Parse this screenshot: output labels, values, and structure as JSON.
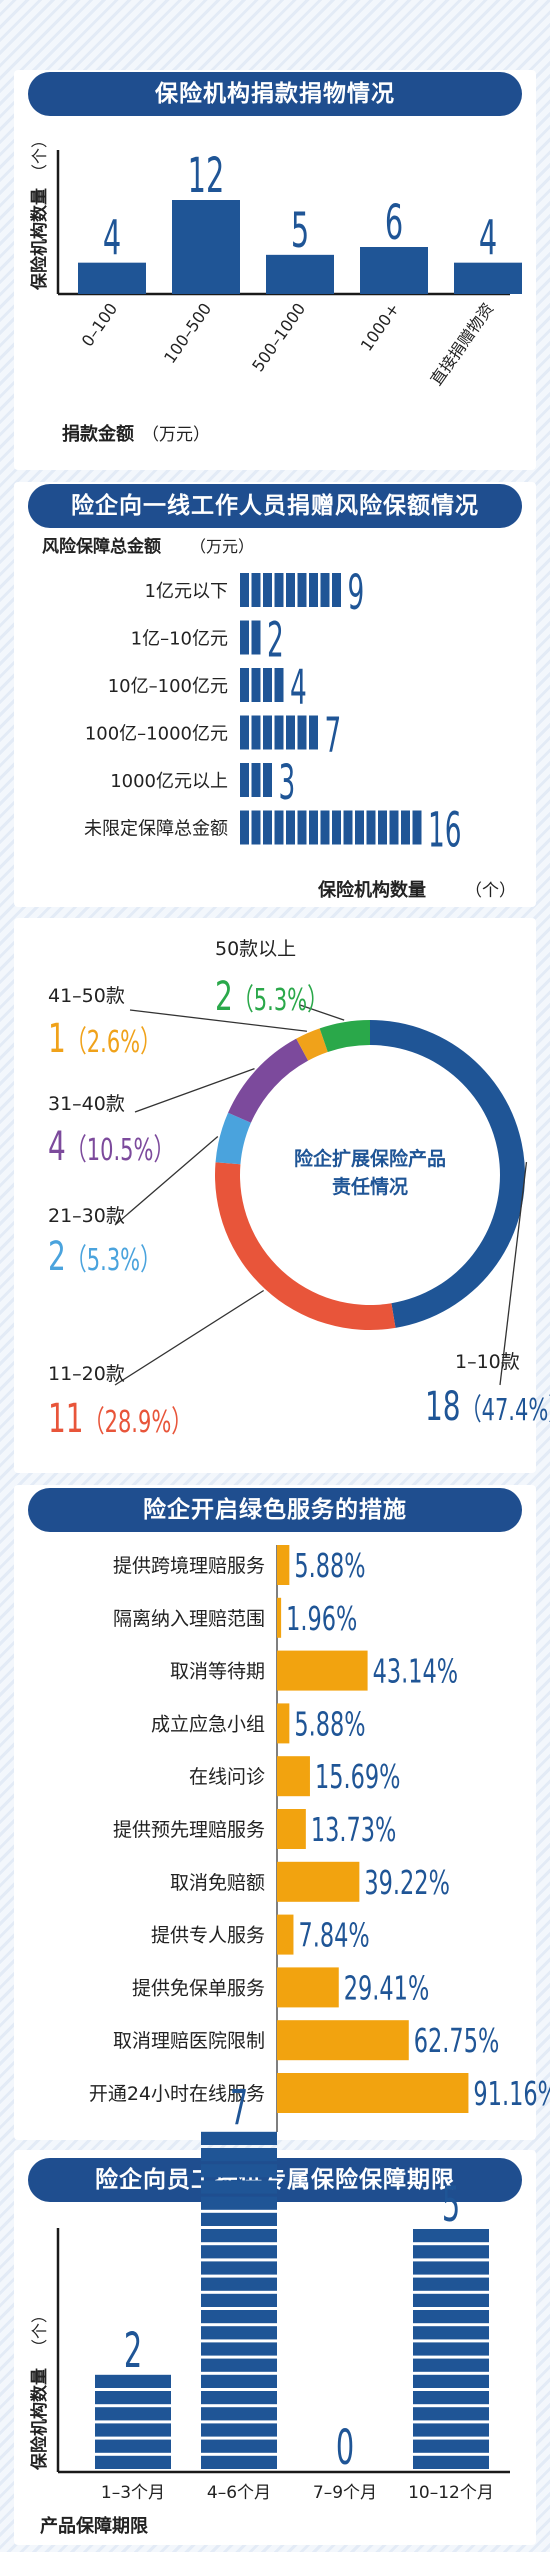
{
  "chart_data": [
    {
      "type": "bar",
      "title": "保险机构捐款捐物情况",
      "xlabel": "捐款金额",
      "xlabel_unit": "（万元）",
      "ylabel": "保险机构数量",
      "ylabel_unit": "（个）",
      "categories": [
        "0–100",
        "100–500",
        "500–1000",
        "1000+",
        "直接捐赠物资"
      ],
      "values": [
        4,
        12,
        5,
        6,
        4
      ],
      "ylim": [
        0,
        12
      ]
    },
    {
      "type": "bar",
      "orientation": "horizontal",
      "title": "险企向一线工作人员捐赠风险保额情况",
      "ylabel": "风险保障总金额",
      "ylabel_unit": "（万元）",
      "xlabel": "保险机构数量",
      "xlabel_unit": "（个）",
      "categories": [
        "1亿元以下",
        "1亿–10亿元",
        "10亿–100亿元",
        "100亿–1000亿元",
        "1000亿元以上",
        "未限定保障总金额"
      ],
      "values": [
        9,
        2,
        4,
        7,
        3,
        16
      ]
    },
    {
      "type": "pie",
      "title": "险企扩展保险产品责任情况",
      "slices": [
        {
          "label": "1–10款",
          "value": 18,
          "percent": "47.4%",
          "color": "#1f5596"
        },
        {
          "label": "11–20款",
          "value": 11,
          "percent": "28.9%",
          "color": "#e8553a"
        },
        {
          "label": "21–30款",
          "value": 2,
          "percent": "5.3%",
          "color": "#4aa3dd"
        },
        {
          "label": "31–40款",
          "value": 4,
          "percent": "10.5%",
          "color": "#7c4a9c"
        },
        {
          "label": "41–50款",
          "value": 1,
          "percent": "2.6%",
          "color": "#f0a21a"
        },
        {
          "label": "50款以上",
          "value": 2,
          "percent": "5.3%",
          "color": "#2aa84a"
        }
      ]
    },
    {
      "type": "bar",
      "orientation": "horizontal",
      "title": "险企开启绿色服务的措施",
      "categories": [
        "提供跨境理赔服务",
        "隔离纳入理赔范围",
        "取消等待期",
        "成立应急小组",
        "在线问诊",
        "提供预先理赔服务",
        "取消免赔额",
        "提供专人服务",
        "提供免保单服务",
        "取消理赔医院限制",
        "开通24小时在线服务"
      ],
      "values": [
        5.88,
        1.96,
        43.14,
        5.88,
        15.69,
        13.73,
        39.22,
        7.84,
        29.41,
        62.75,
        91.16
      ],
      "value_labels": [
        "5.88%",
        "1.96%",
        "43.14%",
        "5.88%",
        "15.69%",
        "13.73%",
        "39.22%",
        "7.84%",
        "29.41%",
        "62.75%",
        "91.16%"
      ],
      "color": "#f2a30f"
    },
    {
      "type": "bar",
      "title": "险企向员工提供专属保险保障期限",
      "xlabel": "产品保障期限",
      "ylabel": "保险机构数量",
      "ylabel_unit": "（个）",
      "categories": [
        "1–3个月",
        "4–6个月",
        "7–9个月",
        "10–12个月"
      ],
      "values": [
        2,
        7,
        0,
        5
      ],
      "ylim": [
        0,
        7
      ]
    }
  ],
  "colors": {
    "navy": "#1f4e8f",
    "bar_navy": "#1f5596",
    "orange": "#f2a30f",
    "text": "#222222"
  }
}
